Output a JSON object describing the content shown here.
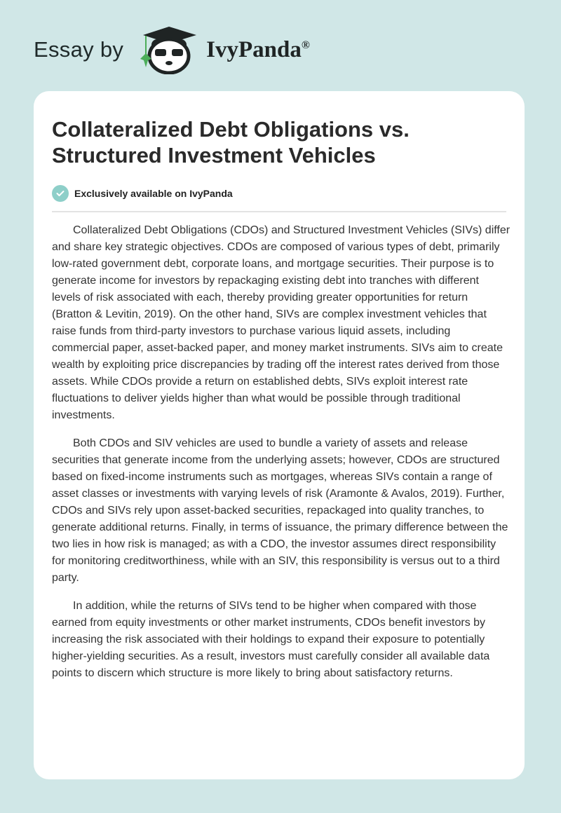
{
  "header": {
    "prefix": "Essay by",
    "brand": "IvyPanda",
    "registered": "®"
  },
  "article": {
    "title": "Collateralized Debt Obligations vs. Structured Investment Vehicles",
    "badge": "Exclusively available on IvyPanda",
    "accent_color": "#8ecfc9",
    "paragraphs": [
      "Collateralized Debt Obligations (CDOs) and Structured Investment Vehicles (SIVs) differ and share key strategic objectives. CDOs are composed of various types of debt, primarily low-rated government debt, corporate loans, and mortgage securities. Their purpose is to generate income for investors by repackaging existing debt into tranches with different levels of risk associated with each, thereby providing greater opportunities for return (Bratton & Levitin, 2019). On the other hand, SIVs are complex investment vehicles that raise funds from third-party investors to purchase various liquid assets, including commercial paper, asset-backed paper, and money market instruments. SIVs aim to create wealth by exploiting price discrepancies by trading off the interest rates derived from those assets. While CDOs provide a return on established debts, SIVs exploit interest rate fluctuations to deliver yields higher than what would be possible through traditional investments.",
      "Both CDOs and SIV vehicles are used to bundle a variety of assets and release securities that generate income from the underlying assets; however, CDOs are structured based on fixed-income instruments such as mortgages, whereas SIVs contain a range of asset classes or investments with varying levels of risk (Aramonte & Avalos, 2019). Further, CDOs and SIVs rely upon asset-backed securities, repackaged into quality tranches, to generate additional returns. Finally, in terms of issuance, the primary difference between the two lies in how risk is managed; as with a CDO, the investor assumes direct responsibility for monitoring creditworthiness, while with an SIV, this responsibility is versus out to a third party.",
      "In addition, while the returns of SIVs tend to be higher when compared with those earned from equity investments or other market instruments, CDOs benefit investors by increasing the risk associated with their holdings to expand their exposure to potentially higher-yielding securities. As a result, investors must carefully consider all available data points to discern which structure is more likely to bring about satisfactory returns."
    ]
  }
}
